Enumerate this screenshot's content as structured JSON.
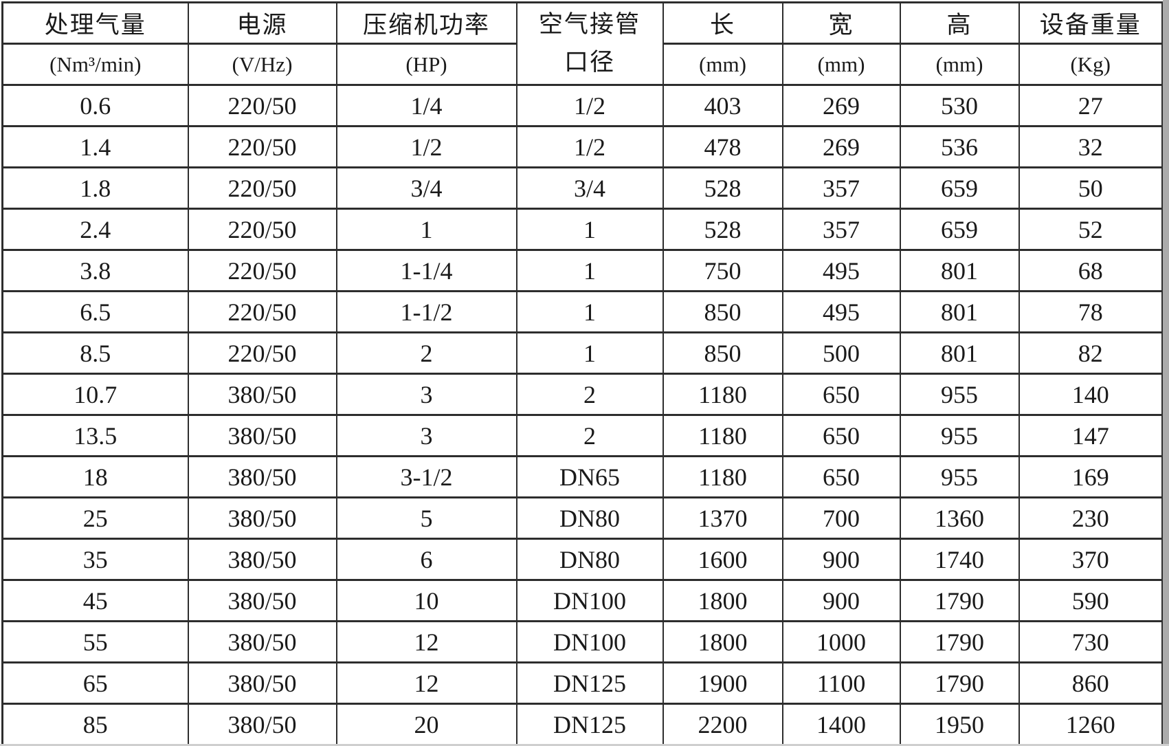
{
  "table": {
    "column_keys": [
      "flow",
      "power_supply",
      "compressor_power",
      "pipe_diameter",
      "length",
      "width",
      "height",
      "weight"
    ],
    "columns": [
      {
        "title": "处理气量",
        "unit": "(Nm³/min)"
      },
      {
        "title": "电源",
        "unit": "(V/Hz)"
      },
      {
        "title": "压缩机功率",
        "unit": "(HP)"
      },
      {
        "title_line1": "空气接管",
        "title_line2": "口径",
        "unit": ""
      },
      {
        "title": "长",
        "unit": "(mm)"
      },
      {
        "title": "宽",
        "unit": "(mm)"
      },
      {
        "title": "高",
        "unit": "(mm)"
      },
      {
        "title": "设备重量",
        "unit": "(Kg)"
      }
    ],
    "rows": [
      [
        "0.6",
        "220/50",
        "1/4",
        "1/2",
        "403",
        "269",
        "530",
        "27"
      ],
      [
        "1.4",
        "220/50",
        "1/2",
        "1/2",
        "478",
        "269",
        "536",
        "32"
      ],
      [
        "1.8",
        "220/50",
        "3/4",
        "3/4",
        "528",
        "357",
        "659",
        "50"
      ],
      [
        "2.4",
        "220/50",
        "1",
        "1",
        "528",
        "357",
        "659",
        "52"
      ],
      [
        "3.8",
        "220/50",
        "1-1/4",
        "1",
        "750",
        "495",
        "801",
        "68"
      ],
      [
        "6.5",
        "220/50",
        "1-1/2",
        "1",
        "850",
        "495",
        "801",
        "78"
      ],
      [
        "8.5",
        "220/50",
        "2",
        "1",
        "850",
        "500",
        "801",
        "82"
      ],
      [
        "10.7",
        "380/50",
        "3",
        "2",
        "1180",
        "650",
        "955",
        "140"
      ],
      [
        "13.5",
        "380/50",
        "3",
        "2",
        "1180",
        "650",
        "955",
        "147"
      ],
      [
        "18",
        "380/50",
        "3-1/2",
        "DN65",
        "1180",
        "650",
        "955",
        "169"
      ],
      [
        "25",
        "380/50",
        "5",
        "DN80",
        "1370",
        "700",
        "1360",
        "230"
      ],
      [
        "35",
        "380/50",
        "6",
        "DN80",
        "1600",
        "900",
        "1740",
        "370"
      ],
      [
        "45",
        "380/50",
        "10",
        "DN100",
        "1800",
        "900",
        "1790",
        "590"
      ],
      [
        "55",
        "380/50",
        "12",
        "DN100",
        "1800",
        "1000",
        "1790",
        "730"
      ],
      [
        "65",
        "380/50",
        "12",
        "DN125",
        "1900",
        "1100",
        "1790",
        "860"
      ],
      [
        "85",
        "380/50",
        "20",
        "DN125",
        "2200",
        "1400",
        "1950",
        "1260"
      ]
    ]
  },
  "colors": {
    "border": "#2d2d2d",
    "text": "#1a1a1a",
    "background": "#ffffff",
    "page_edge": "#ababab"
  }
}
